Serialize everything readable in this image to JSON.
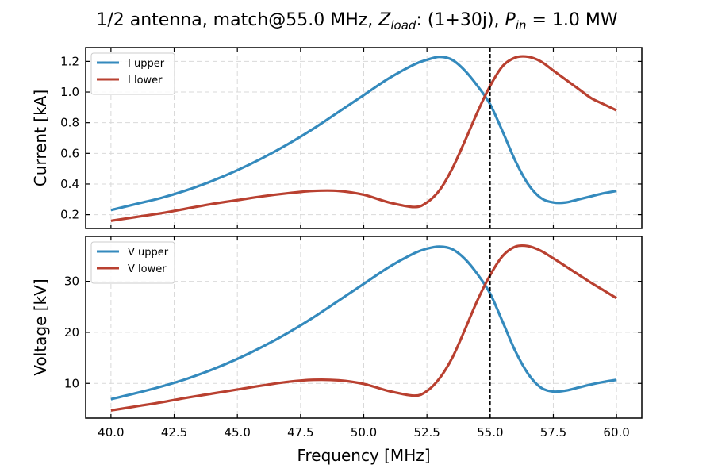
{
  "figure": {
    "title_prefix": "1/2 antenna, match@55.0 MHz, ",
    "title_z": "Z",
    "title_z_sub": "load",
    "title_mid": ": (1+30j), ",
    "title_p": "P",
    "title_p_sub": "in",
    "title_suffix": " = 1.0 MW"
  },
  "colors": {
    "upper": "#348abd",
    "lower": "#b94030",
    "grid": "#d9d9d9"
  },
  "chart_data": [
    {
      "type": "line",
      "ylabel": "Current [kA]",
      "xlabel": "",
      "xlim": [
        39.0,
        61.0
      ],
      "ylim": [
        0.11,
        1.29
      ],
      "xticks": [
        40.0,
        42.5,
        45.0,
        47.5,
        50.0,
        52.5,
        55.0,
        57.5,
        60.0
      ],
      "xtick_labels": [],
      "yticks": [
        0.2,
        0.4,
        0.6,
        0.8,
        1.0,
        1.2
      ],
      "ytick_labels": [
        "0.2",
        "0.4",
        "0.6",
        "0.8",
        "1.0",
        "1.2"
      ],
      "vline": 55.0,
      "grid": true,
      "legend_position": "top-left",
      "x": [
        40,
        41,
        42,
        43,
        44,
        45,
        46,
        47,
        48,
        49,
        50,
        51,
        52,
        52.5,
        53,
        53.5,
        54,
        54.5,
        55,
        55.5,
        56,
        56.5,
        57,
        57.5,
        58,
        58.5,
        59,
        59.5,
        60
      ],
      "series": [
        {
          "name": "I upper",
          "key": "upper",
          "values": [
            0.23,
            0.27,
            0.31,
            0.36,
            0.42,
            0.49,
            0.57,
            0.66,
            0.76,
            0.87,
            0.98,
            1.09,
            1.18,
            1.21,
            1.23,
            1.21,
            1.14,
            1.04,
            0.92,
            0.74,
            0.55,
            0.4,
            0.31,
            0.28,
            0.28,
            0.3,
            0.32,
            0.34,
            0.355
          ]
        },
        {
          "name": "I lower",
          "key": "lower",
          "values": [
            0.16,
            0.185,
            0.21,
            0.24,
            0.27,
            0.295,
            0.32,
            0.34,
            0.355,
            0.355,
            0.33,
            0.28,
            0.25,
            0.28,
            0.36,
            0.5,
            0.68,
            0.87,
            1.04,
            1.17,
            1.225,
            1.23,
            1.2,
            1.14,
            1.08,
            1.02,
            0.96,
            0.92,
            0.88
          ]
        }
      ]
    },
    {
      "type": "line",
      "ylabel": "Voltage [kV]",
      "xlabel": "Frequency [MHz]",
      "xlim": [
        39.0,
        61.0
      ],
      "ylim": [
        3.2,
        38.8
      ],
      "xticks": [
        40.0,
        42.5,
        45.0,
        47.5,
        50.0,
        52.5,
        55.0,
        57.5,
        60.0
      ],
      "xtick_labels": [
        "40.0",
        "42.5",
        "45.0",
        "47.5",
        "50.0",
        "52.5",
        "55.0",
        "57.5",
        "60.0"
      ],
      "yticks": [
        10,
        20,
        30
      ],
      "ytick_labels": [
        "10",
        "20",
        "30"
      ],
      "vline": 55.0,
      "grid": true,
      "legend_position": "top-left",
      "x": [
        40,
        41,
        42,
        43,
        44,
        45,
        46,
        47,
        48,
        49,
        50,
        51,
        52,
        52.5,
        53,
        53.5,
        54,
        54.5,
        55,
        55.5,
        56,
        56.5,
        57,
        57.5,
        58,
        58.5,
        59,
        59.5,
        60
      ],
      "series": [
        {
          "name": "V upper",
          "key": "upper",
          "values": [
            6.9,
            8.1,
            9.4,
            10.9,
            12.7,
            14.8,
            17.2,
            19.9,
            22.9,
            26.2,
            29.5,
            32.8,
            35.5,
            36.4,
            36.8,
            36.3,
            34.4,
            31.4,
            27.6,
            22.0,
            16.3,
            11.9,
            9.2,
            8.4,
            8.6,
            9.2,
            9.8,
            10.3,
            10.7
          ]
        },
        {
          "name": "V lower",
          "key": "lower",
          "values": [
            4.7,
            5.5,
            6.3,
            7.2,
            8.0,
            8.8,
            9.6,
            10.3,
            10.7,
            10.6,
            9.9,
            8.5,
            7.6,
            8.5,
            11.0,
            15.0,
            20.5,
            26.3,
            31.2,
            35.0,
            36.8,
            36.9,
            36.0,
            34.5,
            32.9,
            31.3,
            29.7,
            28.2,
            26.7
          ]
        }
      ]
    }
  ]
}
